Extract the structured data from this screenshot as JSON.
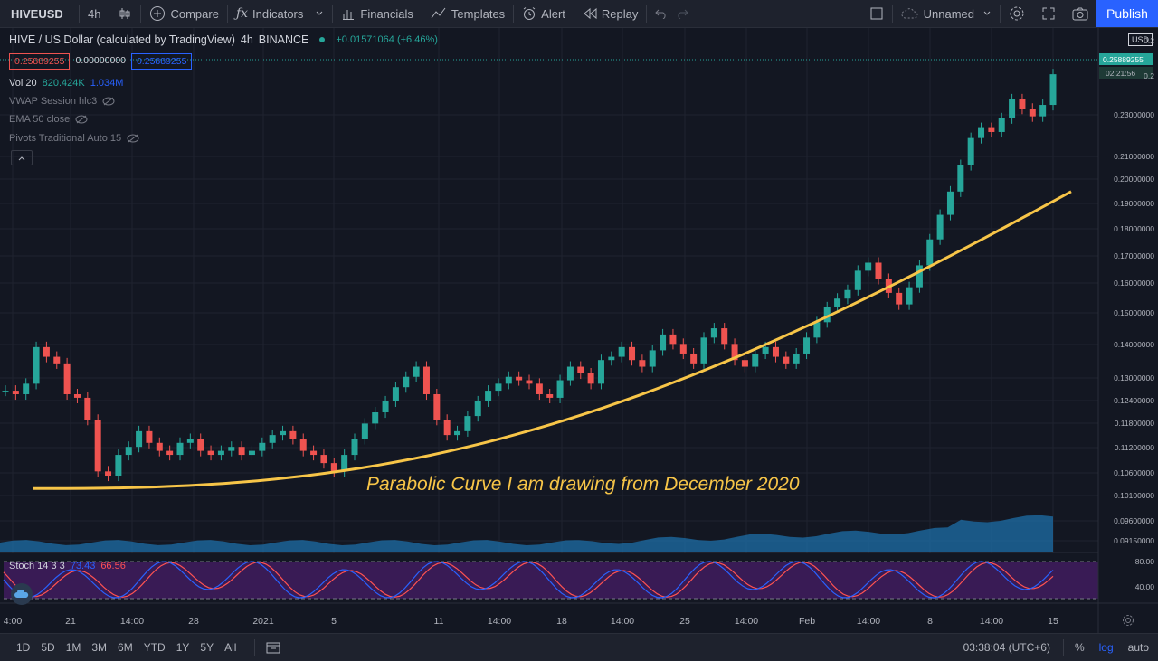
{
  "topbar": {
    "symbol": "HIVEUSD",
    "interval": "4h",
    "compare": "Compare",
    "indicators": "Indicators",
    "financials": "Financials",
    "templates": "Templates",
    "alert": "Alert",
    "replay": "Replay",
    "layout_name": "Unnamed",
    "publish": "Publish"
  },
  "legend": {
    "title": "HIVE / US Dollar (calculated by TradingView)",
    "interval": "4h",
    "exchange": "BINANCE",
    "change": "+0.01571064 (+6.46%)",
    "price_boxes": [
      "0.25889255",
      "0.00000000",
      "0.25889255"
    ],
    "indicators": [
      {
        "name": "Vol 20",
        "v1": "820.424K",
        "v2": "1.034M"
      },
      {
        "name": "VWAP Session hlc3"
      },
      {
        "name": "EMA 50 close"
      },
      {
        "name": "Pivots Traditional Auto 15"
      }
    ]
  },
  "price_scale": {
    "currency": "USD",
    "labels": [
      "0.2",
      "0.2",
      "0.23000000",
      "0.21000000",
      "0.20000000",
      "0.19000000",
      "0.18000000",
      "0.17000000",
      "0.16000000",
      "0.15000000",
      "0.14000000",
      "0.13000000",
      "0.12400000",
      "0.11800000",
      "0.11200000",
      "0.10600000",
      "0.10100000",
      "0.09600000",
      "0.09150000"
    ],
    "last_price": "0.25889255",
    "countdown": "02:21:56",
    "stoch_labels": [
      "80.00",
      "40.00"
    ]
  },
  "annotation": "Parabolic Curve I am drawing from December 2020",
  "stoch": {
    "name": "Stoch 14 3 3",
    "k": "73.43",
    "d": "66.56"
  },
  "time_axis": [
    "4:00",
    "21",
    "14:00",
    "28",
    "2021",
    "5",
    "11",
    "14:00",
    "18",
    "14:00",
    "25",
    "14:00",
    "Feb",
    "14:00",
    "8",
    "14:00",
    "15"
  ],
  "bottombar": {
    "ranges": [
      "1D",
      "5D",
      "1M",
      "3M",
      "6M",
      "YTD",
      "1Y",
      "5Y",
      "All"
    ],
    "clock": "03:38:04 (UTC+6)",
    "percent": "%",
    "log": "log",
    "auto": "auto"
  },
  "colors": {
    "up": "#26a69a",
    "down": "#ef5350",
    "curve": "#f7c548",
    "stoch_k": "#2962ff",
    "stoch_d": "#ff5252",
    "volume": "#1e6fa8",
    "stoch_bg": "#4a1e6b",
    "accent": "#2962ff"
  },
  "chart_data": {
    "type": "candlestick",
    "symbol": "HIVEUSD",
    "close_series": [
      0.129,
      0.128,
      0.131,
      0.142,
      0.139,
      0.137,
      0.128,
      0.127,
      0.121,
      0.108,
      0.107,
      0.112,
      0.114,
      0.118,
      0.115,
      0.113,
      0.112,
      0.115,
      0.116,
      0.113,
      0.112,
      0.113,
      0.114,
      0.112,
      0.113,
      0.115,
      0.117,
      0.118,
      0.116,
      0.113,
      0.112,
      0.11,
      0.108,
      0.112,
      0.116,
      0.12,
      0.123,
      0.126,
      0.13,
      0.133,
      0.136,
      0.128,
      0.121,
      0.117,
      0.118,
      0.122,
      0.126,
      0.129,
      0.131,
      0.133,
      0.132,
      0.131,
      0.128,
      0.127,
      0.132,
      0.136,
      0.134,
      0.131,
      0.138,
      0.139,
      0.142,
      0.138,
      0.136,
      0.141,
      0.146,
      0.143,
      0.14,
      0.137,
      0.145,
      0.148,
      0.143,
      0.138,
      0.136,
      0.14,
      0.142,
      0.139,
      0.137,
      0.14,
      0.145,
      0.15,
      0.155,
      0.158,
      0.161,
      0.168,
      0.171,
      0.165,
      0.16,
      0.156,
      0.162,
      0.17,
      0.18,
      0.19,
      0.2,
      0.212,
      0.225,
      0.23,
      0.228,
      0.235,
      0.245,
      0.24,
      0.236,
      0.242,
      0.2589
    ],
    "curve": {
      "start_price": 0.104,
      "end_price": 0.2,
      "start_label": "December 2020"
    }
  }
}
